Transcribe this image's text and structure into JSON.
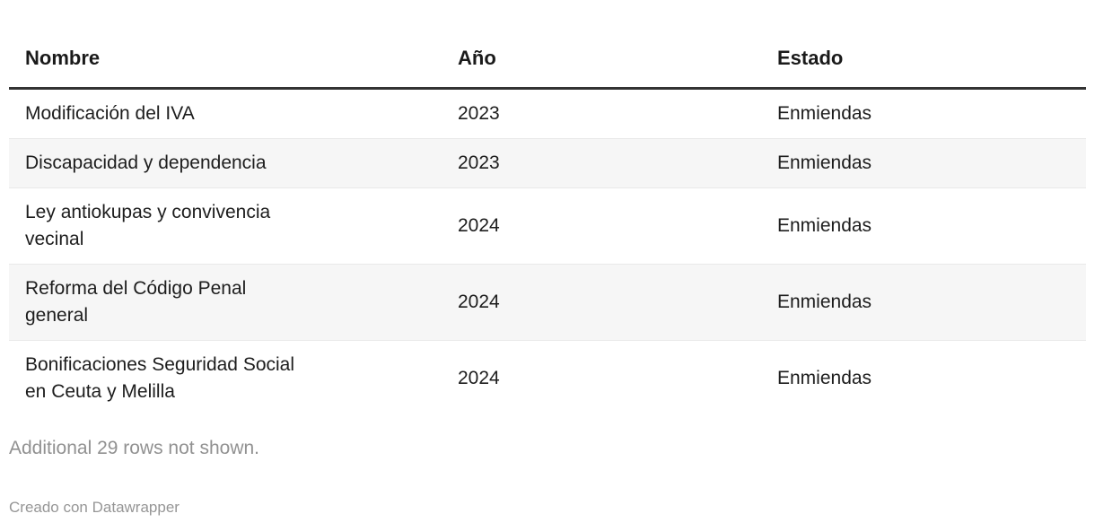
{
  "chart_data": {
    "type": "table",
    "columns": [
      "Nombre",
      "Año",
      "Estado"
    ],
    "rows": [
      [
        "Modificación del IVA",
        "2023",
        "Enmiendas"
      ],
      [
        "Discapacidad y dependencia",
        "2023",
        "Enmiendas"
      ],
      [
        "Ley antiokupas y convivencia vecinal",
        "2024",
        "Enmiendas"
      ],
      [
        "Reforma del Código Penal general",
        "2024",
        "Enmiendas"
      ],
      [
        "Bonificaciones Seguridad Social en Ceuta y Melilla",
        "2024",
        "Enmiendas"
      ]
    ],
    "hidden_rows_count": 29,
    "layout_hints": {
      "zebra_striping": true,
      "header_rule": true
    }
  },
  "table": {
    "header": {
      "nombre": "Nombre",
      "ano": "Año",
      "estado": "Estado"
    },
    "rows": [
      {
        "nombre": "Modificación del IVA",
        "ano": "2023",
        "estado": "Enmiendas"
      },
      {
        "nombre": "Discapacidad y dependencia",
        "ano": "2023",
        "estado": "Enmiendas"
      },
      {
        "nombre": "Ley antiokupas y convivencia\nvecinal",
        "ano": "2024",
        "estado": "Enmiendas"
      },
      {
        "nombre": "Reforma del Código Penal\ngeneral",
        "ano": "2024",
        "estado": "Enmiendas"
      },
      {
        "nombre": "Bonificaciones Seguridad Social\nen Ceuta y Melilla",
        "ano": "2024",
        "estado": "Enmiendas"
      }
    ]
  },
  "footer": {
    "additional_rows_note": "Additional 29 rows not shown.",
    "attribution": "Creado con Datawrapper"
  },
  "colors": {
    "header_rule": "#333333",
    "row_stripe": "#f6f6f6",
    "row_border": "#e9e9e9",
    "body_text": "#1d1d1d",
    "header_text": "#1a1a1a",
    "note_text": "#919191",
    "attribution_text": "#969696",
    "background": "#ffffff"
  }
}
